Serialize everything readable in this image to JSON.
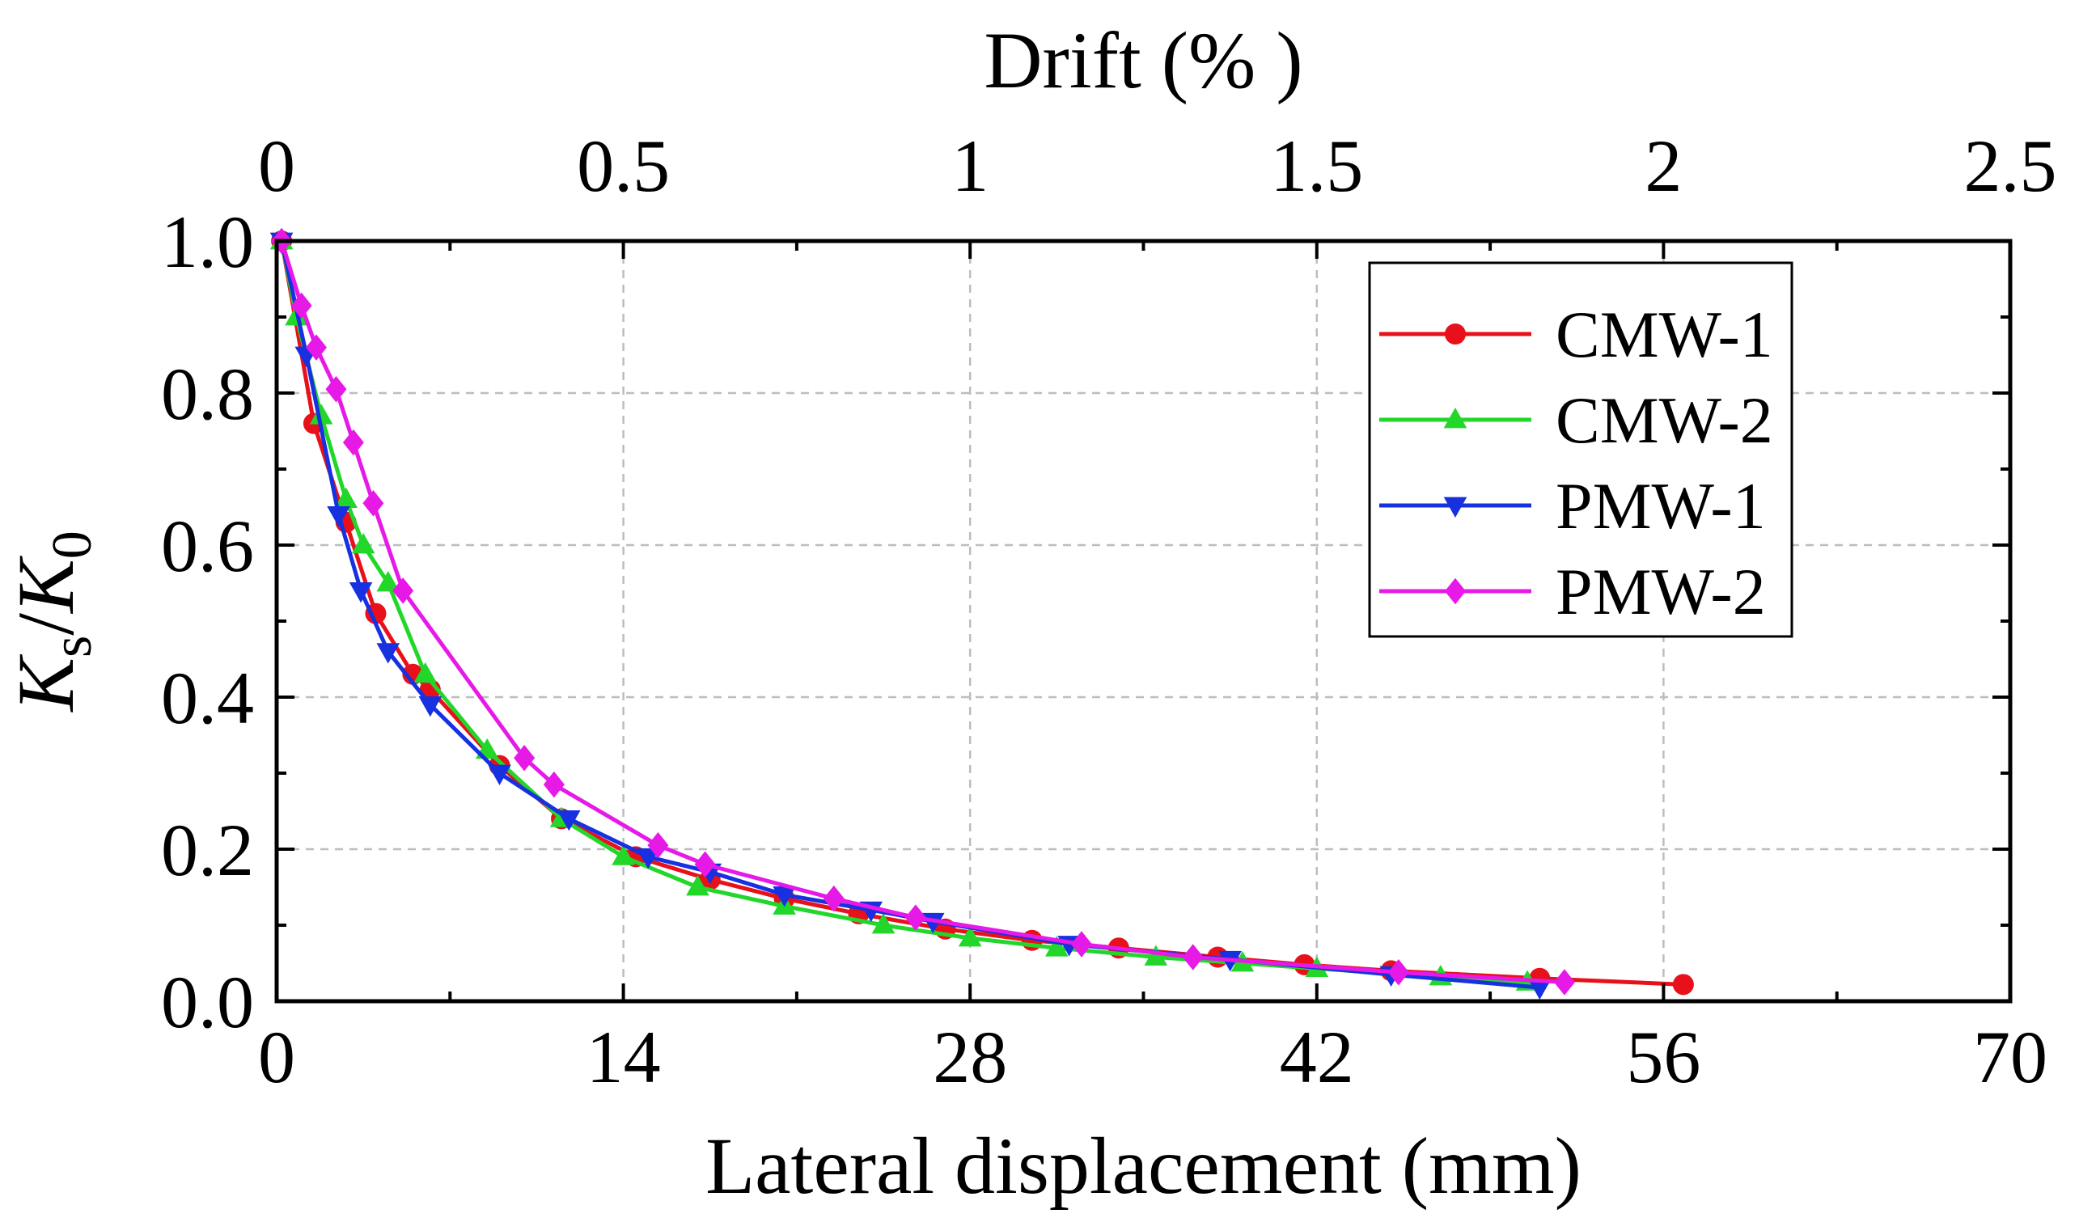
{
  "chart_data": {
    "type": "line",
    "xlabel": "Lateral displacement (mm)",
    "x2label": "Drift (% )",
    "ylabel": "Ks/K0",
    "ylabel_parts": {
      "main": "K",
      "sub": "s",
      "slash": "/",
      "main2": "K",
      "sub2": "0"
    },
    "xlim": [
      0,
      70
    ],
    "x2lim": [
      0,
      2.5
    ],
    "ylim": [
      0,
      1.0
    ],
    "x_ticks": [
      "0",
      "14",
      "28",
      "42",
      "56",
      "70"
    ],
    "x2_ticks": [
      "0",
      "0.5",
      "1",
      "1.5",
      "2",
      "2.5"
    ],
    "y_ticks": [
      "0.0",
      "0.2",
      "0.4",
      "0.6",
      "0.8",
      "1.0"
    ],
    "grid": true,
    "legend_position": "top-right",
    "series": [
      {
        "name": "CMW-1",
        "color": "#e8101a",
        "marker": "circle",
        "x": [
          0.2,
          1.5,
          2.8,
          4.0,
          5.5,
          6.2,
          9.0,
          11.5,
          14.5,
          17.5,
          20.5,
          23.5,
          27.0,
          30.5,
          34.0,
          38.0,
          41.5,
          45.0,
          51.0,
          56.8
        ],
        "y": [
          1.0,
          0.76,
          0.63,
          0.51,
          0.43,
          0.41,
          0.31,
          0.24,
          0.19,
          0.16,
          0.135,
          0.115,
          0.095,
          0.08,
          0.07,
          0.058,
          0.048,
          0.04,
          0.03,
          0.022
        ]
      },
      {
        "name": "CMW-2",
        "color": "#22d62a",
        "marker": "triangle-up",
        "x": [
          0.2,
          0.8,
          1.8,
          2.8,
          3.5,
          4.5,
          6.0,
          8.5,
          11.5,
          14.0,
          17.0,
          20.5,
          24.5,
          28.0,
          31.5,
          35.5,
          39.0,
          42.0,
          47.0,
          50.5
        ],
        "y": [
          1.0,
          0.9,
          0.77,
          0.66,
          0.6,
          0.55,
          0.43,
          0.33,
          0.24,
          0.19,
          0.15,
          0.125,
          0.1,
          0.083,
          0.07,
          0.058,
          0.05,
          0.043,
          0.032,
          0.025
        ]
      },
      {
        "name": "PMW-1",
        "color": "#1730e0",
        "marker": "triangle-down",
        "x": [
          0.2,
          1.2,
          2.5,
          3.4,
          4.5,
          6.2,
          9.0,
          11.8,
          15.0,
          17.5,
          20.5,
          24.0,
          26.5,
          32.0,
          38.5,
          45.0,
          51.0
        ],
        "y": [
          1.0,
          0.85,
          0.64,
          0.54,
          0.46,
          0.39,
          0.3,
          0.24,
          0.19,
          0.17,
          0.14,
          0.12,
          0.105,
          0.075,
          0.055,
          0.035,
          0.018
        ]
      },
      {
        "name": "PMW-2",
        "color": "#e619e6",
        "marker": "diamond",
        "x": [
          0.2,
          1.0,
          1.6,
          2.4,
          3.1,
          3.9,
          5.1,
          10.0,
          11.2,
          15.4,
          17.3,
          22.5,
          25.8,
          32.5,
          37.0,
          45.3,
          52.0
        ],
        "y": [
          1.0,
          0.915,
          0.86,
          0.805,
          0.735,
          0.655,
          0.54,
          0.32,
          0.285,
          0.205,
          0.18,
          0.135,
          0.11,
          0.075,
          0.058,
          0.038,
          0.025
        ]
      }
    ]
  }
}
